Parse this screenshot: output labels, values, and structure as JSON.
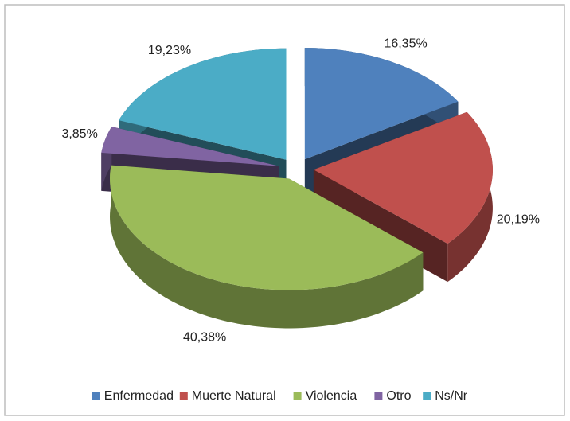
{
  "chart_data": {
    "type": "pie",
    "categories": [
      "Enfermedad",
      "Muerte Natural",
      "Violencia",
      "Otro",
      "Ns/Nr"
    ],
    "values": [
      16.35,
      20.19,
      40.38,
      3.85,
      19.23
    ],
    "value_labels": [
      "16,35%",
      "20,19%",
      "40,38%",
      "3,85%",
      "19,23%"
    ],
    "colors": [
      "#4f81bd",
      "#c0504d",
      "#9bbb59",
      "#8064a2",
      "#4bacc6"
    ],
    "legend": "bottom"
  }
}
